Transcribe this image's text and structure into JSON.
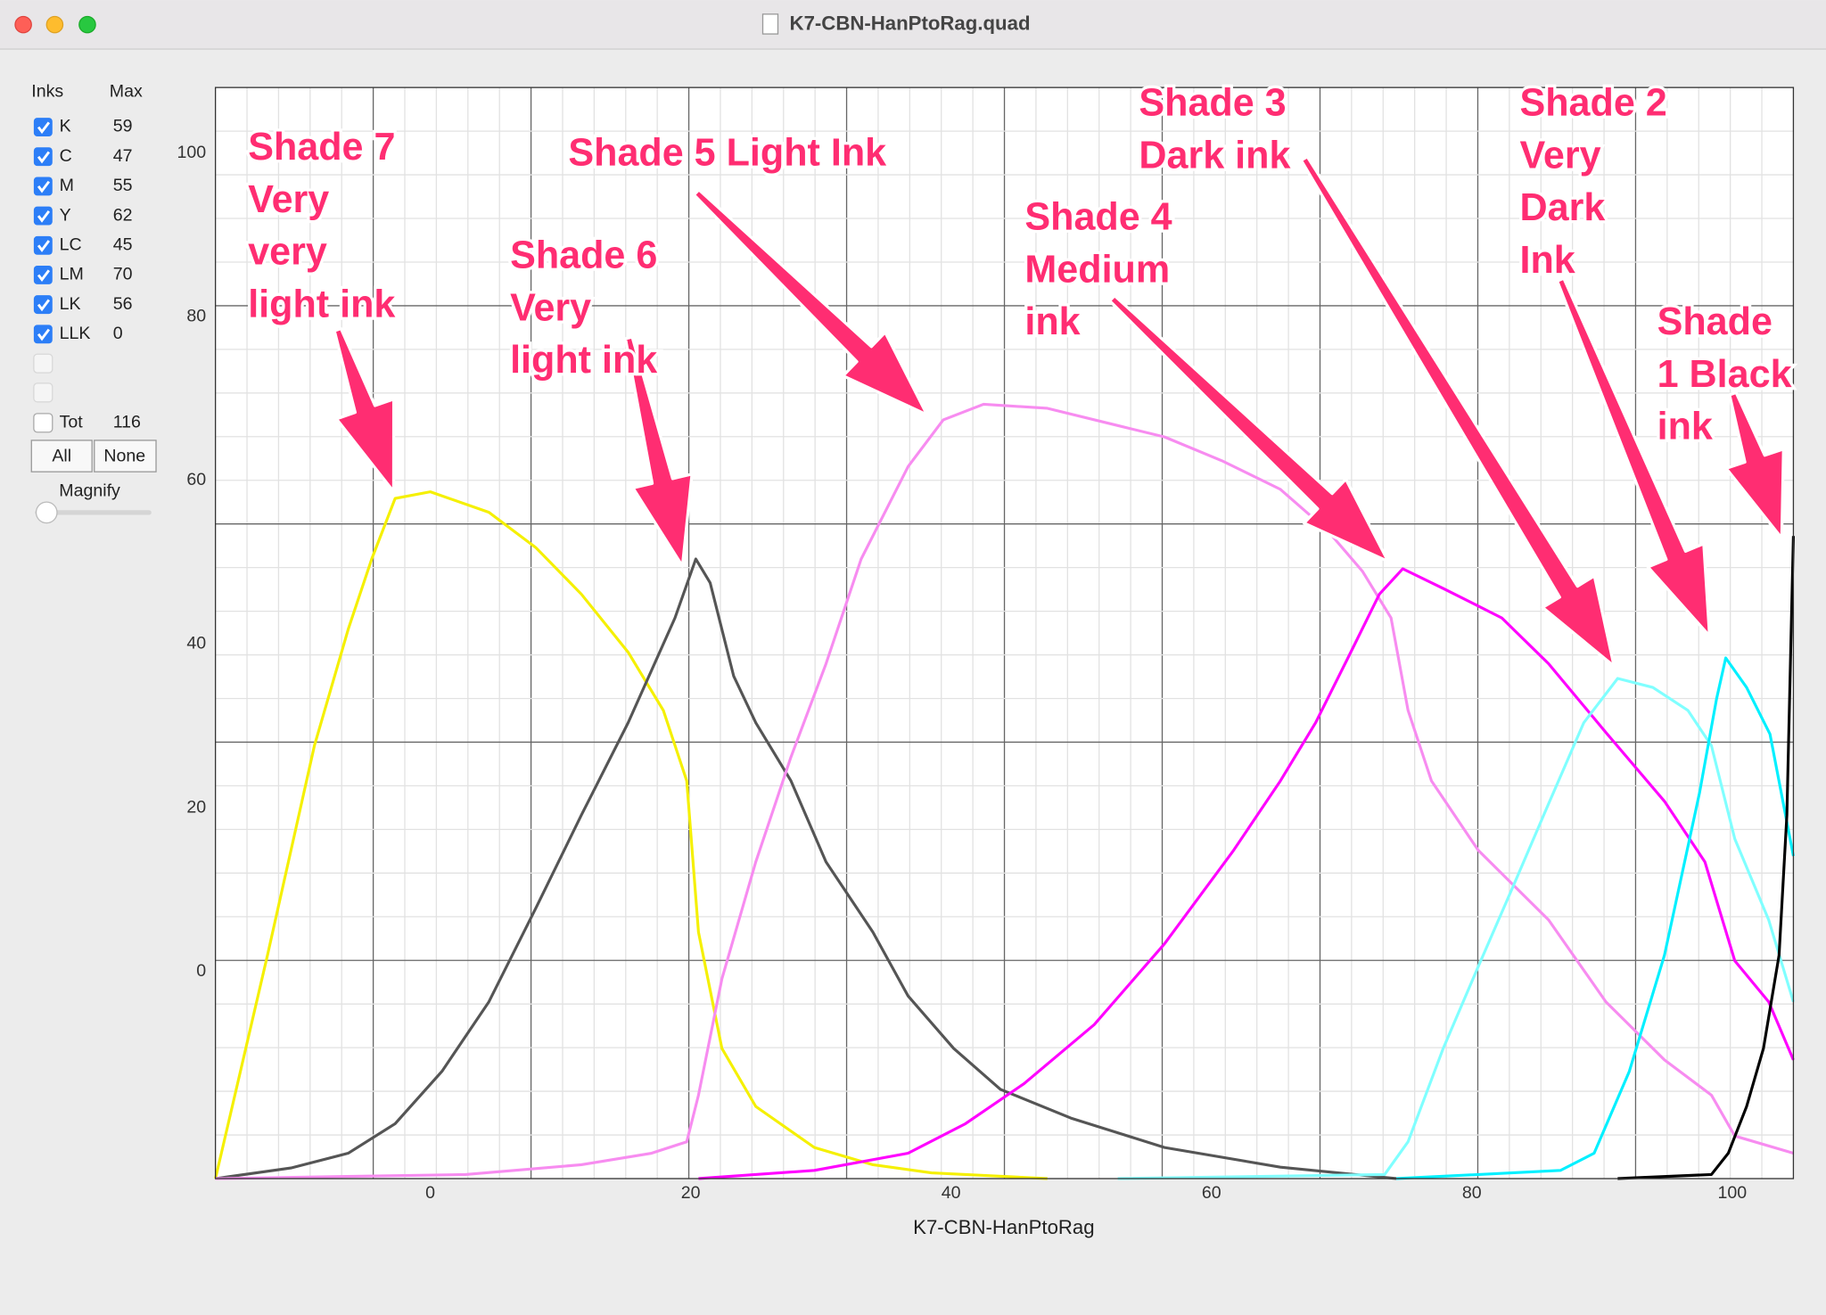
{
  "window": {
    "title": "K7-CBN-HanPtoRag.quad"
  },
  "sidebar": {
    "inks_header": "Inks",
    "max_header": "Max",
    "inks": [
      {
        "name": "K",
        "max": 59,
        "checked": true
      },
      {
        "name": "C",
        "max": 47,
        "checked": true
      },
      {
        "name": "M",
        "max": 55,
        "checked": true
      },
      {
        "name": "Y",
        "max": 62,
        "checked": true
      },
      {
        "name": "LC",
        "max": 45,
        "checked": true
      },
      {
        "name": "LM",
        "max": 70,
        "checked": true
      },
      {
        "name": "LK",
        "max": 56,
        "checked": true
      },
      {
        "name": "LLK",
        "max": 0,
        "checked": true
      }
    ],
    "total": {
      "label": "Tot",
      "value": 116,
      "checked": false
    },
    "buttons": [
      "All",
      "None"
    ],
    "magnify": "Magnify"
  },
  "chart_data": {
    "type": "line",
    "x_label": "K7-CBN-HanPtoRag",
    "xlim": [
      -16.5,
      104.7
    ],
    "ylim": [
      -25.3,
      108
    ],
    "xticks": [
      0,
      20,
      40,
      60,
      80,
      100
    ],
    "yticks": [
      0,
      20,
      40,
      60,
      80,
      100
    ],
    "grid": true,
    "series": [
      {
        "color": "#f5f000",
        "x": [
          -16.5,
          -12.5,
          -8.9,
          -6.3,
          -4.5,
          -2.7,
          0,
          4.5,
          8.1,
          11.6,
          15.2,
          17.9,
          19.7,
          20.6,
          22.4,
          25.0,
          29.5,
          34.0,
          38.5,
          47.4
        ],
        "values": [
          -25.3,
          2.0,
          27.6,
          41.8,
          50.4,
          57.8,
          58.6,
          56.1,
          51.8,
          46.1,
          39.0,
          31.9,
          23.3,
          4.8,
          -9.4,
          -16.5,
          -21.5,
          -23.6,
          -24.6,
          -25.3
        ]
      },
      {
        "color": "#555555",
        "x": [
          -16.5,
          -10.7,
          -6.3,
          -2.7,
          0.9,
          4.5,
          8.1,
          11.6,
          15.2,
          18.8,
          20.4,
          21.5,
          23.3,
          25.0,
          27.7,
          30.4,
          34.0,
          36.7,
          40.2,
          43.8,
          49.2,
          56.4,
          65.3,
          74.2
        ],
        "values": [
          -25.3,
          -24.0,
          -22.2,
          -18.6,
          -12.2,
          -3.7,
          7.7,
          19.1,
          30.4,
          43.2,
          50.4,
          47.5,
          36.1,
          30.4,
          23.3,
          13.4,
          4.8,
          -3.0,
          -9.4,
          -14.4,
          -17.9,
          -21.5,
          -23.9,
          -25.3
        ]
      },
      {
        "color": "#f78cf0",
        "x": [
          -16.5,
          2.7,
          11.6,
          17.0,
          19.7,
          20.6,
          22.4,
          25.0,
          27.7,
          30.4,
          33.1,
          36.7,
          39.4,
          42.5,
          47.4,
          52.8,
          56.4,
          60.8,
          65.3,
          68.9,
          71.6,
          73.8,
          75.1,
          76.9,
          80.5,
          85.9,
          90.3,
          94.8,
          98.4,
          100.2,
          104.7
        ],
        "values": [
          -25.3,
          -24.8,
          -23.6,
          -22.2,
          -20.8,
          -15.1,
          -0.9,
          13.4,
          26.2,
          37.6,
          50.4,
          61.7,
          67.4,
          69.3,
          68.8,
          66.7,
          65.3,
          62.4,
          58.9,
          53.9,
          48.9,
          43.2,
          31.9,
          23.3,
          14.8,
          6.3,
          -3.7,
          -10.8,
          -15.1,
          -20.1,
          -22.2
        ]
      },
      {
        "color": "#ff00ff",
        "x": [
          20.6,
          29.5,
          36.7,
          41.1,
          45.6,
          51.0,
          56.4,
          61.7,
          65.3,
          68.0,
          70.7,
          72.9,
          74.7,
          77.8,
          82.3,
          85.9,
          90.3,
          94.8,
          97.9,
          100.2,
          102.8,
          104.7
        ],
        "values": [
          -25.3,
          -24.3,
          -22.2,
          -18.6,
          -13.7,
          -6.5,
          3.4,
          14.8,
          23.3,
          30.4,
          39.0,
          46.1,
          49.2,
          46.8,
          43.2,
          37.6,
          29.2,
          20.8,
          13.4,
          1.3,
          -3.7,
          -10.8
        ]
      },
      {
        "color": "#80ffff",
        "x": [
          52.8,
          73.3,
          75.1,
          77.8,
          80.5,
          83.2,
          85.9,
          88.6,
          91.2,
          93.9,
          96.6,
          98.4,
          100.2,
          102.8,
          104.7
        ],
        "values": [
          -25.3,
          -24.8,
          -20.8,
          -9.4,
          0.6,
          10.5,
          20.5,
          30.4,
          35.8,
          34.7,
          31.9,
          27.6,
          16.2,
          6.3,
          -3.7
        ]
      },
      {
        "color": "#00f0ff",
        "x": [
          74.2,
          86.8,
          89.4,
          92.1,
          94.8,
          97.5,
          98.8,
          99.5,
          101.1,
          102.9,
          104.7
        ],
        "values": [
          -25.3,
          -24.3,
          -22.2,
          -12.2,
          2.0,
          21.9,
          33.3,
          38.3,
          34.7,
          29.0,
          14.1
        ]
      },
      {
        "color": "#000000",
        "x": [
          91.2,
          98.4,
          99.7,
          101.1,
          102.4,
          103.6,
          104.2,
          104.7
        ],
        "values": [
          -25.3,
          -24.8,
          -22.2,
          -16.5,
          -9.4,
          2.0,
          19.1,
          53.2
        ]
      }
    ],
    "annotations": [
      {
        "lines": [
          "Shade 7",
          "Very",
          "very",
          "light ink"
        ]
      },
      {
        "lines": [
          "Shade 6",
          "Very",
          "light ink"
        ]
      },
      {
        "lines": [
          "Shade 5 Light Ink"
        ]
      },
      {
        "lines": [
          "Shade 4",
          "Medium",
          "ink"
        ]
      },
      {
        "lines": [
          "Shade 3",
          "Dark ink"
        ]
      },
      {
        "lines": [
          "Shade 2",
          "Very",
          "Dark",
          "Ink"
        ]
      },
      {
        "lines": [
          "Shade",
          "1 Black",
          "ink"
        ]
      }
    ]
  }
}
